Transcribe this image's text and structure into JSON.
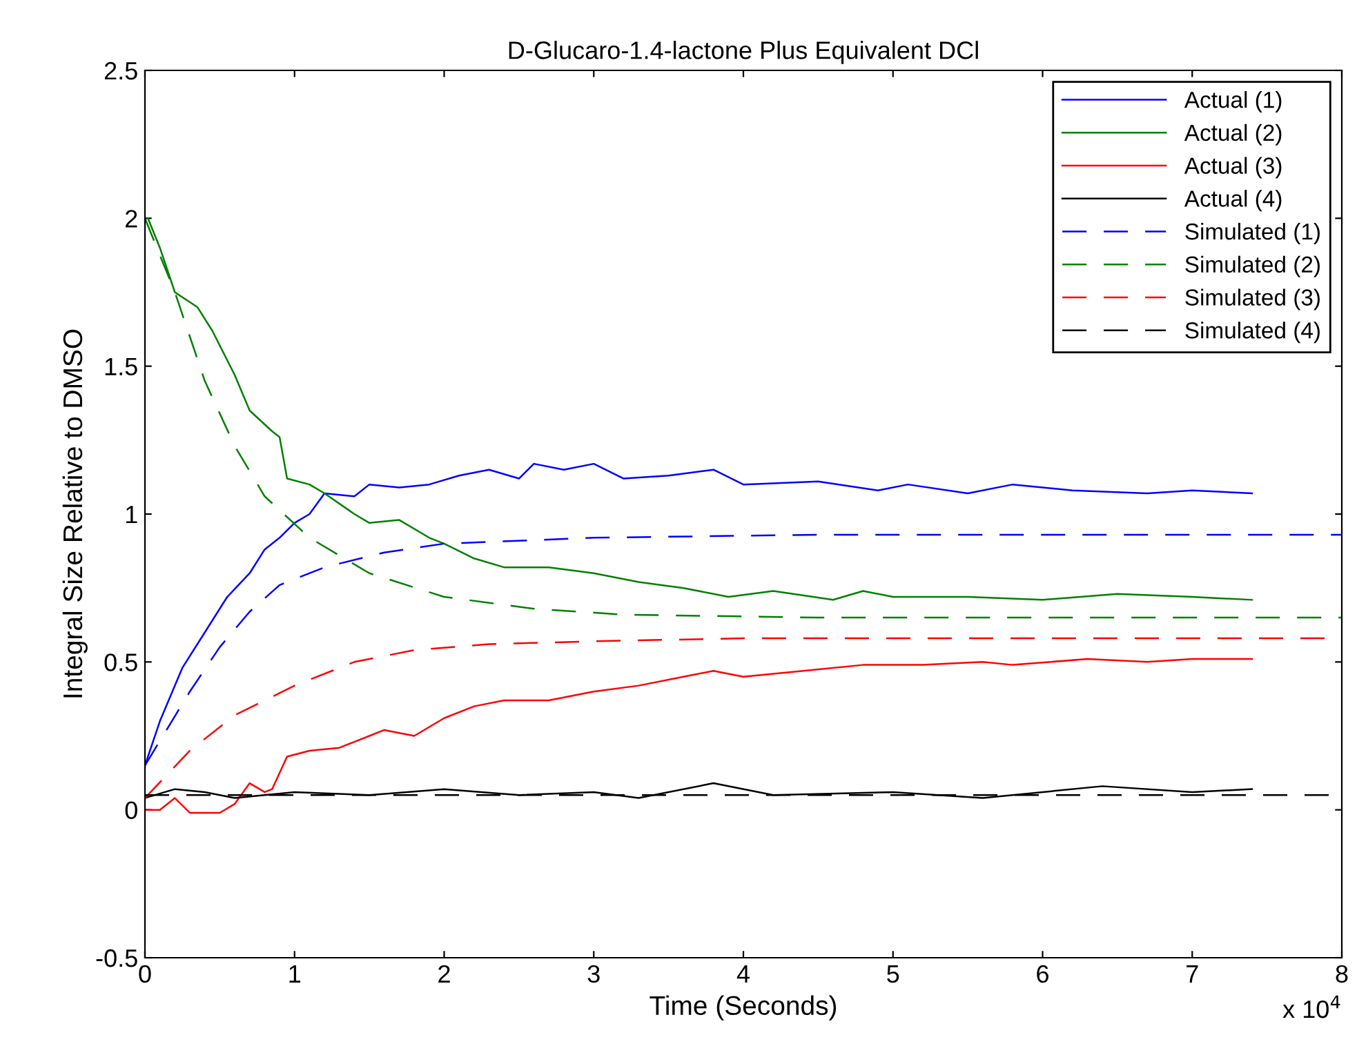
{
  "chart_data": {
    "type": "line",
    "title": "D-Glucaro-1.4-lactone Plus Equivalent DCl",
    "xlabel": "Time (Seconds)",
    "ylabel": "Integral Size Relative to DMSO",
    "annotations": [
      "x 10$^{4}$"
    ],
    "xlim": [
      0,
      8
    ],
    "xticks": [
      0,
      1,
      2,
      3,
      4,
      5,
      6,
      7,
      8
    ],
    "ylim": [
      -0.5,
      2.5
    ],
    "yticks": [
      -0.5,
      0,
      0.5,
      1,
      1.5,
      2,
      2.5
    ],
    "grid": false,
    "legend": "top right",
    "marker": "none",
    "series": [
      {
        "name": "Actual (1)",
        "color": "#0000ff",
        "line_style": "solid",
        "x": [
          0,
          0.1,
          0.25,
          0.4,
          0.55,
          0.7,
          0.8,
          0.9,
          1.0,
          1.1,
          1.2,
          1.4,
          1.5,
          1.7,
          1.9,
          2.1,
          2.3,
          2.5,
          2.6,
          2.8,
          3.0,
          3.2,
          3.5,
          3.8,
          4.0,
          4.5,
          4.9,
          5.1,
          5.5,
          5.8,
          6.2,
          6.7,
          7.0,
          7.4
        ],
        "values": [
          0.15,
          0.3,
          0.48,
          0.6,
          0.72,
          0.8,
          0.88,
          0.92,
          0.97,
          1.0,
          1.07,
          1.06,
          1.1,
          1.09,
          1.1,
          1.13,
          1.15,
          1.12,
          1.17,
          1.15,
          1.17,
          1.12,
          1.13,
          1.15,
          1.1,
          1.11,
          1.08,
          1.1,
          1.07,
          1.1,
          1.08,
          1.07,
          1.08,
          1.07
        ]
      },
      {
        "name": "Actual (2)",
        "color": "#008000",
        "line_style": "solid",
        "x": [
          0.02,
          0.1,
          0.2,
          0.35,
          0.45,
          0.6,
          0.7,
          0.85,
          0.9,
          0.95,
          1.1,
          1.2,
          1.4,
          1.5,
          1.7,
          1.9,
          2.0,
          2.2,
          2.4,
          2.7,
          3.0,
          3.3,
          3.6,
          3.9,
          4.2,
          4.6,
          4.8,
          5.0,
          5.5,
          6.0,
          6.5,
          7.0,
          7.4
        ],
        "values": [
          2.0,
          1.9,
          1.75,
          1.7,
          1.62,
          1.47,
          1.35,
          1.28,
          1.26,
          1.12,
          1.1,
          1.07,
          1.0,
          0.97,
          0.98,
          0.92,
          0.9,
          0.85,
          0.82,
          0.82,
          0.8,
          0.77,
          0.75,
          0.72,
          0.74,
          0.71,
          0.74,
          0.72,
          0.72,
          0.71,
          0.73,
          0.72,
          0.71
        ]
      },
      {
        "name": "Actual (3)",
        "color": "#ff0000",
        "line_style": "solid",
        "x": [
          0,
          0.1,
          0.2,
          0.3,
          0.5,
          0.6,
          0.7,
          0.8,
          0.85,
          0.95,
          1.1,
          1.3,
          1.5,
          1.6,
          1.8,
          2.0,
          2.2,
          2.4,
          2.7,
          3.0,
          3.3,
          3.6,
          3.8,
          4.0,
          4.4,
          4.8,
          5.2,
          5.6,
          5.8,
          6.3,
          6.7,
          7.0,
          7.4
        ],
        "values": [
          0.0,
          0.0,
          0.04,
          -0.01,
          -0.01,
          0.02,
          0.09,
          0.06,
          0.07,
          0.18,
          0.2,
          0.21,
          0.25,
          0.27,
          0.25,
          0.31,
          0.35,
          0.37,
          0.37,
          0.4,
          0.42,
          0.45,
          0.47,
          0.45,
          0.47,
          0.49,
          0.49,
          0.5,
          0.49,
          0.51,
          0.5,
          0.51,
          0.51
        ]
      },
      {
        "name": "Actual (4)",
        "color": "#000000",
        "line_style": "solid",
        "x": [
          0,
          0.2,
          0.4,
          0.6,
          1.0,
          1.5,
          2.0,
          2.5,
          3.0,
          3.3,
          3.8,
          4.2,
          5.0,
          5.6,
          6.4,
          7.0,
          7.4
        ],
        "values": [
          0.04,
          0.07,
          0.06,
          0.04,
          0.06,
          0.05,
          0.07,
          0.05,
          0.06,
          0.04,
          0.09,
          0.05,
          0.06,
          0.04,
          0.08,
          0.06,
          0.07
        ]
      },
      {
        "name": "Simulated (1)",
        "color": "#0000ff",
        "line_style": "dashed",
        "x": [
          0,
          0.3,
          0.5,
          0.7,
          0.9,
          1.2,
          1.6,
          2.0,
          3.0,
          4.5,
          8.0
        ],
        "values": [
          0.15,
          0.4,
          0.55,
          0.67,
          0.76,
          0.82,
          0.87,
          0.9,
          0.92,
          0.93,
          0.93
        ]
      },
      {
        "name": "Simulated (2)",
        "color": "#008000",
        "line_style": "dashed",
        "x": [
          0,
          0.2,
          0.4,
          0.6,
          0.8,
          1.1,
          1.5,
          2.0,
          2.6,
          3.2,
          4.5,
          8.0
        ],
        "values": [
          2.0,
          1.75,
          1.45,
          1.23,
          1.06,
          0.92,
          0.8,
          0.72,
          0.68,
          0.66,
          0.65,
          0.65
        ]
      },
      {
        "name": "Simulated (3)",
        "color": "#ff0000",
        "line_style": "dashed",
        "x": [
          0,
          0.3,
          0.6,
          1.0,
          1.4,
          1.8,
          2.3,
          3.0,
          4.0,
          7.9
        ],
        "values": [
          0.04,
          0.2,
          0.32,
          0.42,
          0.5,
          0.54,
          0.56,
          0.57,
          0.58,
          0.58
        ]
      },
      {
        "name": "Simulated (4)",
        "color": "#000000",
        "line_style": "dashed",
        "x": [
          0,
          8.0
        ],
        "values": [
          0.05,
          0.05
        ]
      }
    ]
  }
}
